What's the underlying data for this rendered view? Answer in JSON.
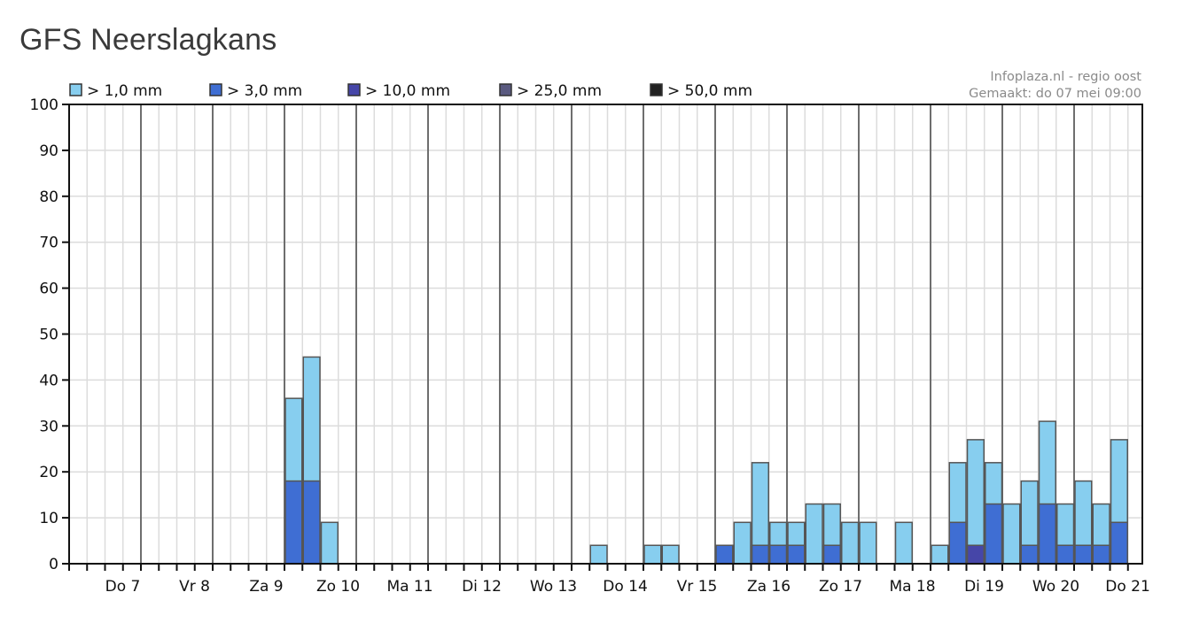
{
  "title": "GFS Neerslagkans",
  "source": {
    "line1": "Infoplaza.nl - regio oost",
    "line2": "Gemaakt: do 07 mei 09:00"
  },
  "colors": {
    "gt1": "#87ceef",
    "gt3": "#3f6ed3",
    "gt10": "#4646a8",
    "gt25": "#5a5a80",
    "gt50": "#222222",
    "day_line": "#6e6e6e",
    "grid": "#dcdcdc",
    "bar_edge": "#555555"
  },
  "chart_data": {
    "type": "bar",
    "stacked": "overlay",
    "title": "GFS Neerslagkans",
    "xlabel": "",
    "ylabel": "",
    "ylim": [
      0,
      100
    ],
    "yticks": [
      0,
      10,
      20,
      30,
      40,
      50,
      60,
      70,
      80,
      90,
      100
    ],
    "grid": true,
    "legend_position": "top-left",
    "periods_per_day": 4,
    "days": [
      "Do 7",
      "Vr 8",
      "Za 9",
      "Zo 10",
      "Ma 11",
      "Di 12",
      "Wo 13",
      "Do 14",
      "Vr 15",
      "Za 16",
      "Zo 17",
      "Ma 18",
      "Di 19",
      "Wo 20",
      "Do 21"
    ],
    "series": [
      {
        "name": "> 1,0 mm",
        "color_key": "gt1",
        "values": [
          0,
          0,
          0,
          0,
          0,
          0,
          0,
          0,
          0,
          0,
          0,
          0,
          36,
          45,
          9,
          0,
          0,
          0,
          0,
          0,
          0,
          0,
          0,
          0,
          0,
          0,
          0,
          0,
          0,
          4,
          0,
          0,
          4,
          4,
          0,
          0,
          4,
          9,
          22,
          9,
          9,
          13,
          13,
          9,
          9,
          0,
          9,
          0,
          4,
          22,
          27,
          22,
          13,
          18,
          31,
          13,
          18,
          13,
          27
        ]
      },
      {
        "name": "> 3,0 mm",
        "color_key": "gt3",
        "values": [
          0,
          0,
          0,
          0,
          0,
          0,
          0,
          0,
          0,
          0,
          0,
          0,
          18,
          18,
          0,
          0,
          0,
          0,
          0,
          0,
          0,
          0,
          0,
          0,
          0,
          0,
          0,
          0,
          0,
          0,
          0,
          0,
          0,
          0,
          0,
          0,
          4,
          0,
          4,
          4,
          4,
          0,
          4,
          0,
          0,
          0,
          0,
          0,
          0,
          9,
          4,
          13,
          0,
          4,
          13,
          4,
          4,
          4,
          9
        ]
      },
      {
        "name": "> 10,0 mm",
        "color_key": "gt10",
        "values": [
          0,
          0,
          0,
          0,
          0,
          0,
          0,
          0,
          0,
          0,
          0,
          0,
          0,
          0,
          0,
          0,
          0,
          0,
          0,
          0,
          0,
          0,
          0,
          0,
          0,
          0,
          0,
          0,
          0,
          0,
          0,
          0,
          0,
          0,
          0,
          0,
          0,
          0,
          0,
          0,
          0,
          0,
          0,
          0,
          0,
          0,
          0,
          0,
          0,
          0,
          4,
          0,
          0,
          0,
          0,
          0,
          0,
          0,
          0
        ]
      },
      {
        "name": "> 25,0 mm",
        "color_key": "gt25",
        "values": []
      },
      {
        "name": "> 50,0 mm",
        "color_key": "gt50",
        "values": []
      }
    ]
  }
}
